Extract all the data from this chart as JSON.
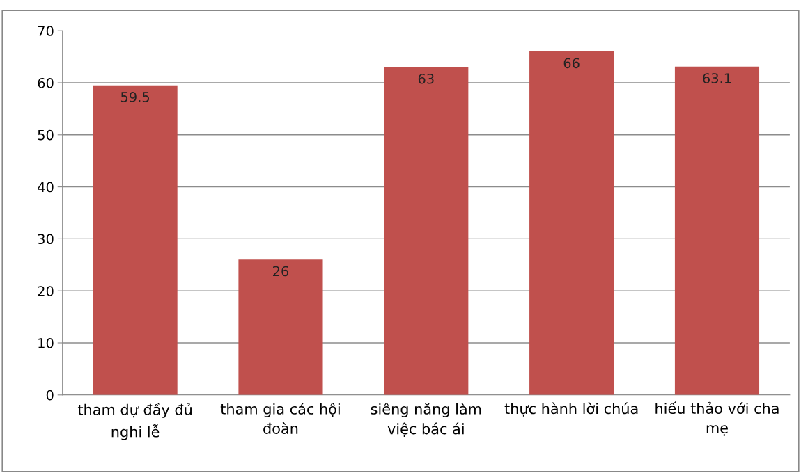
{
  "chart_data": {
    "type": "bar",
    "categories": [
      "tham dự đầy đủ\nnghi lễ",
      "tham gia các hội\nđoàn",
      "siêng năng làm\nviệc bác ái",
      "thực hành lời chúa",
      "hiếu thảo với cha\nmẹ"
    ],
    "values": [
      59.5,
      26,
      63,
      66,
      63.1
    ],
    "color": "#c0504d",
    "ylim": [
      0,
      70
    ],
    "yticks": [
      0,
      10,
      20,
      30,
      40,
      50,
      60,
      70
    ],
    "grid": "y",
    "data_labels": true
  }
}
